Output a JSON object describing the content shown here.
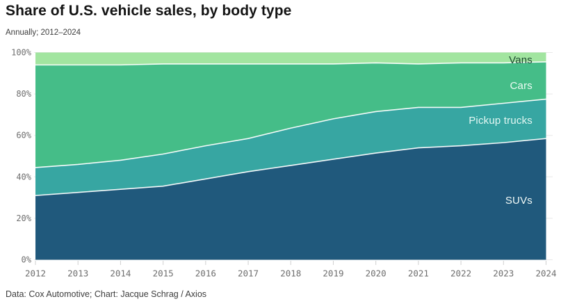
{
  "header": {
    "title": "Share of U.S. vehicle sales, by body type",
    "subtitle": "Annually; 2012–2024"
  },
  "footer": {
    "credit": "Data: Cox Automotive; Chart: Jacque Schrag / Axios"
  },
  "style": {
    "background": "#ffffff",
    "grid_color": "#e8e8e8",
    "tick_color": "#cfcfcf",
    "axis_text_color": "#6e6e6e",
    "boundary_line_color": "#ffffff",
    "title_color": "#141414"
  },
  "chart_data": {
    "type": "area",
    "stacked": true,
    "title": "Share of U.S. vehicle sales, by body type",
    "subtitle": "Annually; 2012–2024",
    "x": [
      2012,
      2013,
      2014,
      2015,
      2016,
      2017,
      2018,
      2019,
      2020,
      2021,
      2022,
      2023,
      2024
    ],
    "series": [
      {
        "name": "SUVs",
        "color": "#20597c",
        "label_color": "#f2faf7",
        "values": [
          31,
          32.5,
          34,
          35.5,
          39,
          42.5,
          45.5,
          48.5,
          51.5,
          54,
          55,
          56.5,
          58.5
        ]
      },
      {
        "name": "Pickup trucks",
        "color": "#37a6a2",
        "label_color": "#e3f7f3",
        "values": [
          13.5,
          13.5,
          14,
          15.5,
          16,
          16,
          18,
          19.5,
          20,
          19.5,
          18.5,
          19,
          19
        ]
      },
      {
        "name": "Cars",
        "color": "#45bd88",
        "label_color": "#eefcf4",
        "values": [
          49.5,
          48,
          46,
          43.5,
          39.5,
          36,
          31,
          26.5,
          23.5,
          21,
          21.5,
          19.5,
          18
        ]
      },
      {
        "name": "Vans",
        "color": "#a2e5a0",
        "label_color": "#1c4a30",
        "values": [
          6,
          6,
          6,
          5.5,
          5.5,
          5.5,
          5.5,
          5.5,
          5,
          5.5,
          5,
          5,
          4.5
        ]
      }
    ],
    "ylim": [
      0,
      100
    ],
    "yticks": [
      "0%",
      "20%",
      "40%",
      "60%",
      "80%",
      "100%"
    ],
    "xticks": [
      "2012",
      "2013",
      "2014",
      "2015",
      "2016",
      "2017",
      "2018",
      "2019",
      "2020",
      "2021",
      "2022",
      "2023",
      "2024"
    ],
    "grid": "horizontal",
    "legend_position": "inline-right",
    "units": "percent"
  }
}
